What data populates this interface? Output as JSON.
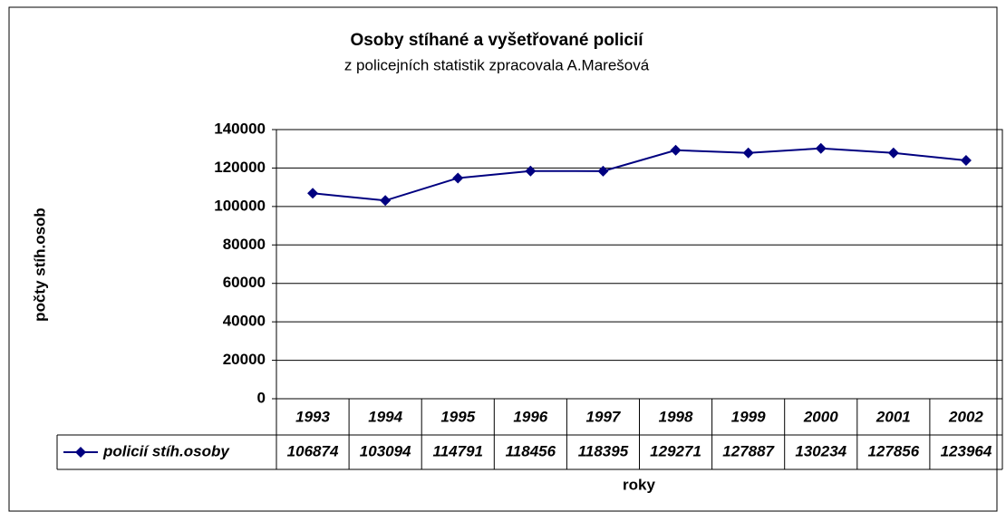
{
  "chart_data": {
    "type": "line",
    "title": "Osoby stíhané a vyšetřované policií",
    "subtitle": "z policejních statistik zpracovala A.Marešová",
    "y_label": "počty stíh.osob",
    "x_label": "roky",
    "categories": [
      "1993",
      "1994",
      "1995",
      "1996",
      "1997",
      "1998",
      "1999",
      "2000",
      "2001",
      "2002"
    ],
    "series": [
      {
        "name": "policií stíh.osoby",
        "color": "#000080",
        "values": [
          106874,
          103094,
          114791,
          118456,
          118395,
          129271,
          127887,
          130234,
          127856,
          123964
        ]
      }
    ],
    "ylim": [
      0,
      140000
    ],
    "yticks": [
      0,
      20000,
      40000,
      60000,
      80000,
      100000,
      120000,
      140000
    ],
    "grid": true
  }
}
